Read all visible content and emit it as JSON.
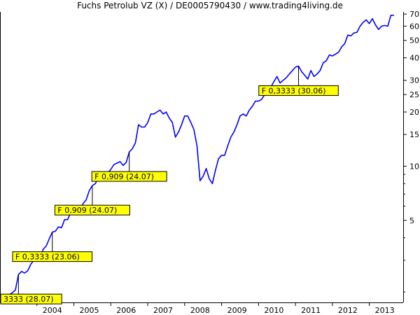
{
  "chart_data": {
    "type": "line",
    "title": "Fuchs Petrolub VZ (X) / DE0005790430 / www.trading4living.de",
    "xlabel": "",
    "ylabel": "",
    "y_scale": "log",
    "x_range": [
      "2003-01",
      "2013-12"
    ],
    "y_range": [
      1.75,
      72
    ],
    "grid": false,
    "colors": {
      "series": "#0000ff",
      "annotation_fill": "#ffff00",
      "annotation_border": "#000000"
    },
    "x_tick_labels": [
      "2004",
      "2005",
      "2006",
      "2007",
      "2008",
      "2009",
      "2010",
      "2011",
      "2012",
      "2013"
    ],
    "y_ticks": [
      5,
      10,
      15,
      20,
      25,
      30,
      40,
      50,
      60,
      70
    ],
    "series": [
      {
        "points": [
          [
            "2003-01",
            1.88
          ],
          [
            "2003-02",
            1.88
          ],
          [
            "2003-03",
            1.85
          ],
          [
            "2003-04",
            1.93
          ],
          [
            "2003-05",
            1.98
          ],
          [
            "2003-06",
            2.05
          ],
          [
            "2003-07",
            2.5
          ],
          [
            "2003-08",
            2.6
          ],
          [
            "2003-09",
            2.55
          ],
          [
            "2003-10",
            2.62
          ],
          [
            "2003-11",
            2.85
          ],
          [
            "2003-12",
            3.0
          ],
          [
            "2004-01",
            3.15
          ],
          [
            "2004-02",
            3.05
          ],
          [
            "2004-03",
            3.45
          ],
          [
            "2004-04",
            3.6
          ],
          [
            "2004-05",
            3.95
          ],
          [
            "2004-06",
            4.3
          ],
          [
            "2004-07",
            4.35
          ],
          [
            "2004-08",
            4.6
          ],
          [
            "2004-09",
            4.55
          ],
          [
            "2004-10",
            5.05
          ],
          [
            "2004-11",
            5.05
          ],
          [
            "2004-12",
            5.55
          ],
          [
            "2005-01",
            6.0
          ],
          [
            "2005-02",
            5.8
          ],
          [
            "2005-03",
            5.6
          ],
          [
            "2005-04",
            6.2
          ],
          [
            "2005-05",
            6.5
          ],
          [
            "2005-06",
            7.3
          ],
          [
            "2005-07",
            7.8
          ],
          [
            "2005-08",
            8.0
          ],
          [
            "2005-09",
            8.7
          ],
          [
            "2005-10",
            8.5
          ],
          [
            "2005-11",
            9.0
          ],
          [
            "2005-12",
            9.2
          ],
          [
            "2006-01",
            9.6
          ],
          [
            "2006-02",
            10.2
          ],
          [
            "2006-03",
            10.4
          ],
          [
            "2006-04",
            10.6
          ],
          [
            "2006-05",
            10.1
          ],
          [
            "2006-06",
            10.5
          ],
          [
            "2006-07",
            12.0
          ],
          [
            "2006-08",
            12.5
          ],
          [
            "2006-09",
            13.5
          ],
          [
            "2006-10",
            17.0
          ],
          [
            "2006-11",
            16.5
          ],
          [
            "2006-12",
            16.5
          ],
          [
            "2007-01",
            17.5
          ],
          [
            "2007-02",
            19.5
          ],
          [
            "2007-03",
            19.5
          ],
          [
            "2007-04",
            20.0
          ],
          [
            "2007-05",
            20.5
          ],
          [
            "2007-06",
            19.5
          ],
          [
            "2007-07",
            20.0
          ],
          [
            "2007-08",
            18.5
          ],
          [
            "2007-09",
            17.5
          ],
          [
            "2007-10",
            14.5
          ],
          [
            "2007-11",
            15.5
          ],
          [
            "2007-12",
            17.0
          ],
          [
            "2008-01",
            19.0
          ],
          [
            "2008-02",
            19.0
          ],
          [
            "2008-03",
            17.5
          ],
          [
            "2008-04",
            16.0
          ],
          [
            "2008-05",
            13.0
          ],
          [
            "2008-06",
            8.3
          ],
          [
            "2008-07",
            8.8
          ],
          [
            "2008-08",
            9.7
          ],
          [
            "2008-09",
            8.5
          ],
          [
            "2008-10",
            8.0
          ],
          [
            "2008-11",
            9.5
          ],
          [
            "2008-12",
            11.0
          ],
          [
            "2009-01",
            11.5
          ],
          [
            "2009-02",
            11.5
          ],
          [
            "2009-03",
            13.0
          ],
          [
            "2009-04",
            14.5
          ],
          [
            "2009-05",
            15.5
          ],
          [
            "2009-06",
            17.0
          ],
          [
            "2009-07",
            19.0
          ],
          [
            "2009-08",
            19.5
          ],
          [
            "2009-09",
            19.0
          ],
          [
            "2009-10",
            20.5
          ],
          [
            "2009-11",
            21.5
          ],
          [
            "2009-12",
            23.0
          ],
          [
            "2010-01",
            23.0
          ],
          [
            "2010-02",
            23.5
          ],
          [
            "2010-03",
            25.0
          ],
          [
            "2010-04",
            25.5
          ],
          [
            "2010-05",
            27.5
          ],
          [
            "2010-06",
            29.5
          ],
          [
            "2010-07",
            31.5
          ],
          [
            "2010-08",
            29.0
          ],
          [
            "2010-09",
            30.0
          ],
          [
            "2010-10",
            31.0
          ],
          [
            "2010-11",
            32.5
          ],
          [
            "2010-12",
            34.0
          ],
          [
            "2011-01",
            35.5
          ],
          [
            "2011-02",
            36.0
          ],
          [
            "2011-03",
            33.5
          ],
          [
            "2011-04",
            32.0
          ],
          [
            "2011-05",
            30.5
          ],
          [
            "2011-06",
            34.0
          ],
          [
            "2011-07",
            31.5
          ],
          [
            "2011-08",
            32.5
          ],
          [
            "2011-09",
            34.0
          ],
          [
            "2011-10",
            37.5
          ],
          [
            "2011-11",
            38.5
          ],
          [
            "2011-12",
            41.5
          ],
          [
            "2012-01",
            41.0
          ],
          [
            "2012-02",
            42.0
          ],
          [
            "2012-03",
            43.0
          ],
          [
            "2012-04",
            46.0
          ],
          [
            "2012-05",
            48.0
          ],
          [
            "2012-06",
            53.5
          ],
          [
            "2012-07",
            53.0
          ],
          [
            "2012-08",
            55.0
          ],
          [
            "2012-09",
            55.5
          ],
          [
            "2012-10",
            60.0
          ],
          [
            "2012-11",
            63.0
          ],
          [
            "2012-12",
            65.0
          ],
          [
            "2013-01",
            62.0
          ],
          [
            "2013-02",
            66.0
          ],
          [
            "2013-03",
            61.0
          ],
          [
            "2013-04",
            57.5
          ],
          [
            "2013-05",
            60.0
          ],
          [
            "2013-06",
            60.5
          ],
          [
            "2013-07",
            60.0
          ],
          [
            "2013-08",
            69.0
          ],
          [
            "2013-09",
            69.0
          ]
        ]
      }
    ],
    "annotations": [
      {
        "text": "3333 (28.07)",
        "x": "2003-07",
        "y": 2.5
      },
      {
        "text": "F 0,3333 (23.06)",
        "x": "2004-06",
        "y": 4.3
      },
      {
        "text": "F 0,909 (24.07)",
        "x": "2005-07",
        "y": 7.8
      },
      {
        "text": "F 0,909 (24.07)",
        "x": "2006-07",
        "y": 12.0
      },
      {
        "text": "F 0,3333 (30.06)",
        "x": "2011-02",
        "y": 36.0
      }
    ]
  }
}
